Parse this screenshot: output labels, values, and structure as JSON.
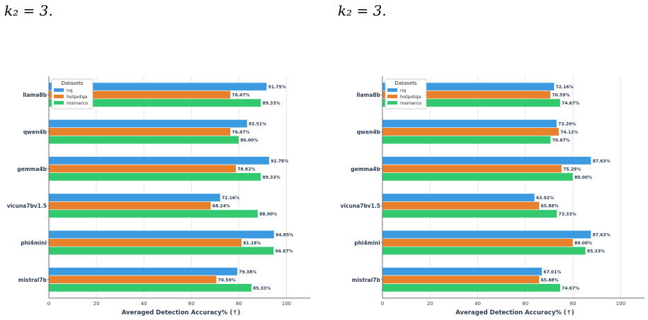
{
  "captions": {
    "left": "k₂ = 3.",
    "right": "k₂ = 3."
  },
  "colors": {
    "nq": "#3b9ae0",
    "hotpotqa": "#e8812b",
    "msmarco": "#33c96e",
    "axis_text": "#2e3d55",
    "grid": "#e6e6e6"
  },
  "chart_data": [
    {
      "type": "bar",
      "orientation": "horizontal",
      "categories": [
        "llama8b",
        "qwen4b",
        "gemma4b",
        "vicuna7bv1.5",
        "phi4mini",
        "mistral7b"
      ],
      "series": [
        {
          "name": "nq",
          "values": [
            91.75,
            83.51,
            92.78,
            72.16,
            94.85,
            79.38
          ],
          "labels": [
            "91.75%",
            "83.51%",
            "92.78%",
            "72.16%",
            "94.85%",
            "79.38%"
          ]
        },
        {
          "name": "hotpotqa",
          "values": [
            76.47,
            76.47,
            78.82,
            68.24,
            81.18,
            70.59
          ],
          "labels": [
            "76.47%",
            "76.47%",
            "78.82%",
            "68.24%",
            "81.18%",
            "70.59%"
          ]
        },
        {
          "name": "msmarco",
          "values": [
            89.33,
            80.0,
            89.33,
            88.0,
            94.67,
            85.33
          ],
          "labels": [
            "89.33%",
            "80.00%",
            "89.33%",
            "88.00%",
            "94.67%",
            "85.33%"
          ]
        }
      ],
      "xlabel": "Averaged Detection Accuracy% (↑)",
      "xticks": [
        "0",
        "20",
        "40",
        "60",
        "80",
        "100"
      ],
      "xlim": [
        0,
        110
      ],
      "legend": {
        "title": "Datasets",
        "placement": "top-left"
      },
      "grid": true
    },
    {
      "type": "bar",
      "orientation": "horizontal",
      "categories": [
        "llama8b",
        "qwen4b",
        "gemma4b",
        "vicuna7bv1.5",
        "phi4mini",
        "mistral7b"
      ],
      "series": [
        {
          "name": "nq",
          "values": [
            72.16,
            73.2,
            87.63,
            63.92,
            87.63,
            67.01
          ],
          "labels": [
            "72.16%",
            "73.20%",
            "87.63%",
            "63.92%",
            "87.63%",
            "67.01%"
          ]
        },
        {
          "name": "hotpotqa",
          "values": [
            70.59,
            74.12,
            75.29,
            65.88,
            80.0,
            65.88
          ],
          "labels": [
            "70.59%",
            "74.12%",
            "75.29%",
            "65.88%",
            "80.00%",
            "65.88%"
          ]
        },
        {
          "name": "msmarco",
          "values": [
            74.67,
            70.67,
            80.0,
            73.33,
            85.33,
            74.67
          ],
          "labels": [
            "74.67%",
            "70.67%",
            "80.00%",
            "73.33%",
            "85.33%",
            "74.67%"
          ]
        }
      ],
      "xlabel": "Averaged Detection Accuracy% (↑)",
      "xticks": [
        "0",
        "20",
        "40",
        "60",
        "80",
        "100"
      ],
      "xlim": [
        0,
        110
      ],
      "legend": {
        "title": "Datasets",
        "placement": "top-left"
      },
      "grid": true
    }
  ]
}
